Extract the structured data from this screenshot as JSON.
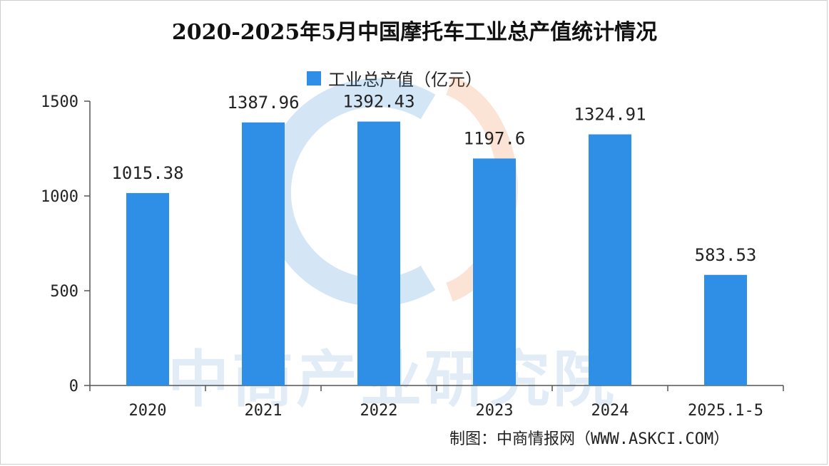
{
  "title": "2020-2025年5月中国摩托车工业总产值统计情况",
  "source": "制图：中商情报网（WWW.ASKCI.COM）",
  "watermark": "中商产业研究院",
  "colors": {
    "bar": "#2f8fe6",
    "axis": "#555555"
  },
  "chart_data": {
    "type": "bar",
    "title": "2020-2025年5月中国摩托车工业总产值统计情况",
    "categories": [
      "2020",
      "2021",
      "2022",
      "2023",
      "2024",
      "2025.1-5"
    ],
    "series": [
      {
        "name": "工业总产值（亿元）",
        "values": [
          1015.38,
          1387.96,
          1392.43,
          1197.6,
          1324.91,
          583.53
        ],
        "labels": [
          "1015.38",
          "1387.96",
          "1392.43",
          "1197.6",
          "1324.91",
          "583.53"
        ]
      }
    ],
    "ylim": [
      0,
      1500
    ],
    "yticks": [
      "0",
      "500",
      "1000",
      "1500"
    ],
    "ytick_values": [
      0,
      500,
      1000,
      1500
    ],
    "grid": false,
    "legend_position": "top-center"
  }
}
